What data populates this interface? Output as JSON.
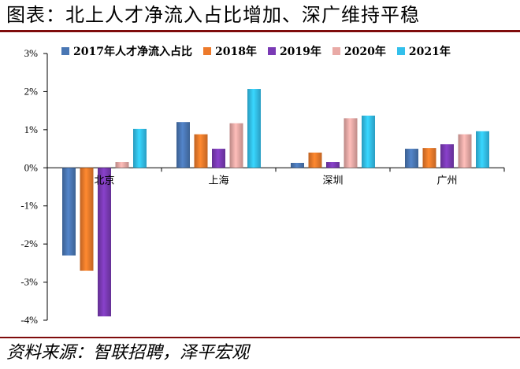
{
  "header": {
    "title": "图表：北上人才净流入占比增加、深广维持平稳"
  },
  "footer": {
    "source": "资料来源：智联招聘，泽平宏观"
  },
  "chart_data": {
    "type": "bar",
    "title": "",
    "xlabel": "",
    "ylabel": "",
    "categories": [
      "北京",
      "上海",
      "深圳",
      "广州"
    ],
    "ylim": [
      -4,
      3
    ],
    "yticks": [
      3,
      2,
      1,
      0,
      -1,
      -2,
      -3,
      -4
    ],
    "ytick_labels": [
      "3%",
      "2%",
      "1%",
      "0%",
      "-1%",
      "-2%",
      "-3%",
      "-4%"
    ],
    "value_unit": "%",
    "grid": false,
    "legend_position": "top",
    "series": [
      {
        "name": "2017年人才净流入占比",
        "color": "#4a77b4",
        "values": [
          -2.3,
          1.2,
          0.13,
          0.5
        ]
      },
      {
        "name": "2018年",
        "color": "#ed7a2b",
        "values": [
          -2.7,
          0.88,
          0.4,
          0.52
        ]
      },
      {
        "name": "2019年",
        "color": "#7a3ab5",
        "values": [
          -3.9,
          0.5,
          0.15,
          0.62
        ]
      },
      {
        "name": "2020年",
        "color": "#e9aaa6",
        "values": [
          0.15,
          1.17,
          1.3,
          0.88
        ]
      },
      {
        "name": "2021年",
        "color": "#33c0ec",
        "values": [
          1.02,
          2.07,
          1.37,
          0.96
        ]
      }
    ]
  }
}
